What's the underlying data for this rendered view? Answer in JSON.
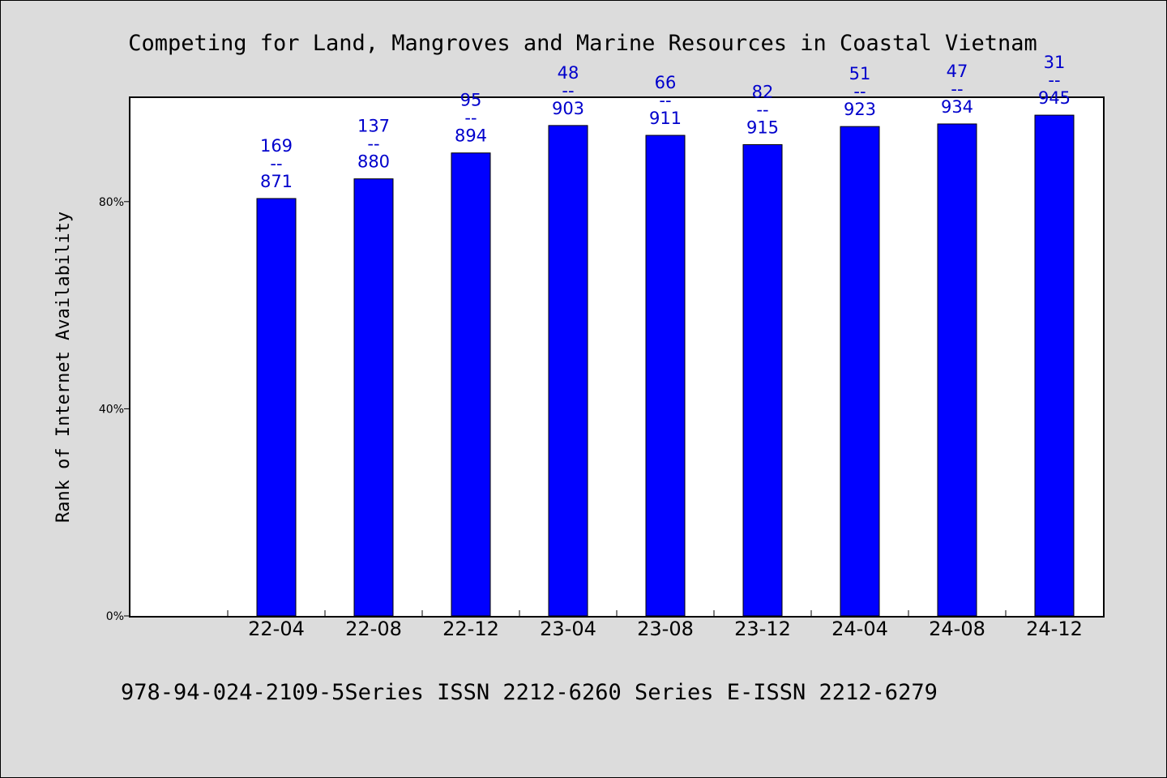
{
  "chart_data": {
    "type": "bar",
    "title": "Competing for Land, Mangroves and Marine Resources in Coastal Vietnam",
    "ylabel": "Rank of Internet Availability",
    "xlabel": "",
    "footer": "978-94-024-2109-5Series ISSN 2212-6260 Series E-ISSN 2212-6279",
    "categories": [
      "22-04",
      "22-08",
      "22-12",
      "23-04",
      "23-08",
      "23-12",
      "24-04",
      "24-08",
      "24-12"
    ],
    "values": [
      80.6,
      84.4,
      89.4,
      94.7,
      92.8,
      91.0,
      94.5,
      95.0,
      96.7
    ],
    "data_labels": [
      [
        "169",
        "--",
        "871"
      ],
      [
        "137",
        "--",
        "880"
      ],
      [
        "95",
        "--",
        "894"
      ],
      [
        "48",
        "--",
        "903"
      ],
      [
        "66",
        "--",
        "911"
      ],
      [
        "82",
        "--",
        "915"
      ],
      [
        "51",
        "--",
        "923"
      ],
      [
        "47",
        "--",
        "934"
      ],
      [
        "31",
        "--",
        "945"
      ]
    ],
    "ylim": [
      0,
      100
    ],
    "y_ticks": [
      0,
      40,
      80
    ],
    "y_tick_labels": [
      "0%",
      "40%",
      "80%"
    ],
    "grid": false,
    "legend": "none",
    "colors": {
      "bar": "#0000ff",
      "data_label": "#0000cc",
      "background": "#dcdcdc",
      "plot_area": "#ffffff"
    }
  }
}
